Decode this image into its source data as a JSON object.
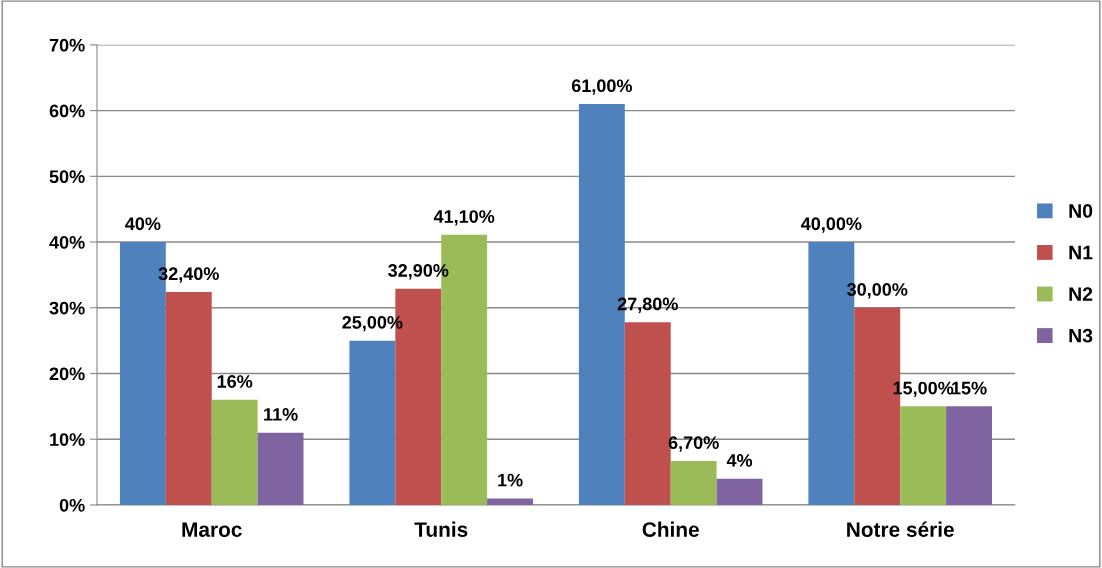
{
  "chart_data": {
    "type": "bar",
    "categories": [
      "Maroc",
      "Tunis",
      "Chine",
      "Notre série"
    ],
    "series": [
      {
        "name": "N0",
        "color": "#4f81bd",
        "values": [
          40,
          25,
          61,
          40
        ],
        "value_labels": [
          "40%",
          "25,00%",
          "61,00%",
          "40,00%"
        ]
      },
      {
        "name": "N1",
        "color": "#c0504d",
        "values": [
          32.4,
          32.9,
          27.8,
          30
        ],
        "value_labels": [
          "32,40%",
          "32,90%",
          "27,80%",
          "30,00%"
        ]
      },
      {
        "name": "N2",
        "color": "#9bbb59",
        "values": [
          16,
          41.1,
          6.7,
          15
        ],
        "value_labels": [
          "16%",
          "41,10%",
          "6,70%",
          "15,00%"
        ]
      },
      {
        "name": "N3",
        "color": "#8064a2",
        "values": [
          11,
          1,
          4,
          15
        ],
        "value_labels": [
          "11%",
          "1%",
          "4%",
          "15%"
        ]
      }
    ],
    "ylim": [
      0,
      70
    ],
    "yticks": [
      {
        "value": 0,
        "label": "0%"
      },
      {
        "value": 10,
        "label": "10%"
      },
      {
        "value": 20,
        "label": "20%"
      },
      {
        "value": 30,
        "label": "30%"
      },
      {
        "value": 40,
        "label": "40%"
      },
      {
        "value": 50,
        "label": "50%"
      },
      {
        "value": 60,
        "label": "60%"
      },
      {
        "value": 70,
        "label": "70%"
      }
    ],
    "grid": "y",
    "legend": "right"
  }
}
